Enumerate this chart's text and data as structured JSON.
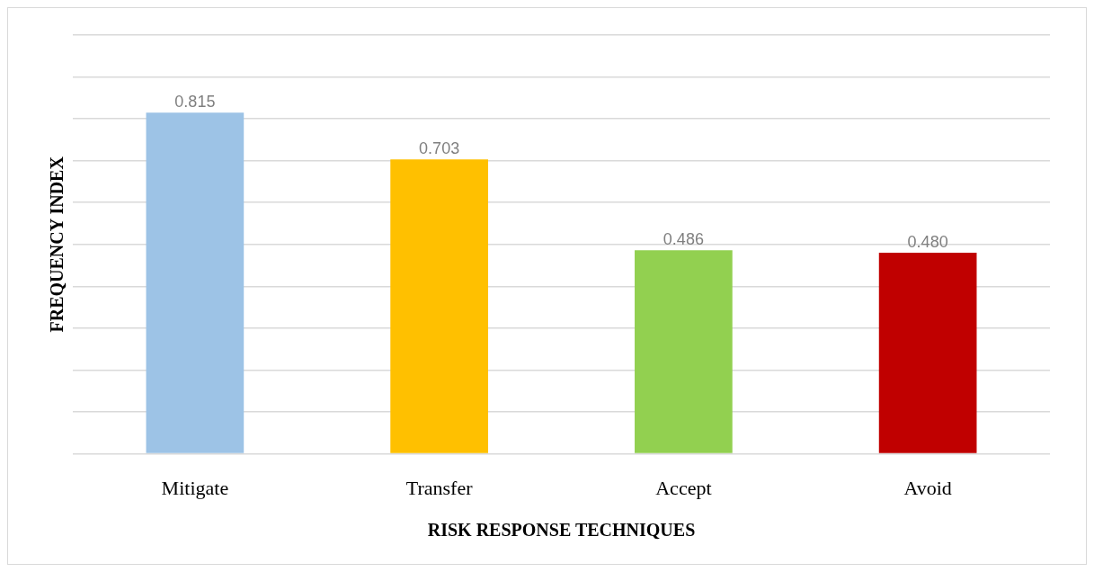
{
  "chart_data": {
    "type": "bar",
    "xlabel": "RISK RESPONSE TECHNIQUES",
    "ylabel": "FREQUENCY INDEX",
    "categories": [
      "Mitigate",
      "Transfer",
      "Accept",
      "Avoid"
    ],
    "values": [
      0.815,
      0.703,
      0.486,
      0.48
    ],
    "colors": [
      "#9dc3e6",
      "#ffc000",
      "#92d050",
      "#c00000"
    ],
    "value_labels": [
      "0.815",
      "0.703",
      "0.486",
      "0.480"
    ],
    "ylim": [
      0,
      1
    ],
    "grid": "y",
    "legend": false,
    "tick_labels": "x"
  }
}
